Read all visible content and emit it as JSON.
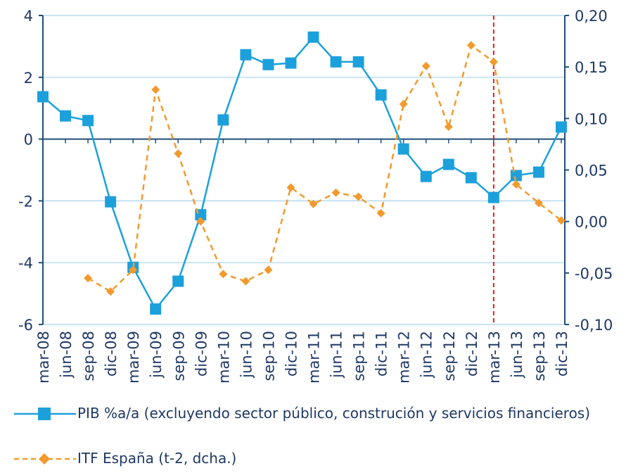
{
  "chart_data": {
    "type": "line",
    "categories": [
      "mar-08",
      "jun-08",
      "sep-08",
      "dic-08",
      "mar-09",
      "jun-09",
      "sep-09",
      "dic-09",
      "mar-10",
      "jun-10",
      "sep-10",
      "dic-10",
      "mar-11",
      "jun-11",
      "sep-11",
      "dic-11",
      "mar-12",
      "jun-12",
      "sep-12",
      "dic-12",
      "mar-13",
      "jun-13",
      "sep-13",
      "dic-13"
    ],
    "series": [
      {
        "name": "PIB %a/a (excluyendo sector público, construción y servicios financieros)",
        "color": "#1ca0dc",
        "marker": "square",
        "values": [
          1.37,
          0.75,
          0.6,
          -2.03,
          -4.15,
          -5.5,
          -4.6,
          -2.45,
          0.62,
          2.73,
          2.41,
          2.46,
          3.3,
          2.5,
          2.5,
          1.43,
          -0.32,
          -1.21,
          -0.82,
          -1.25,
          -1.89,
          -1.18,
          -1.07,
          0.39
        ]
      },
      {
        "name": "ITF España (t-2, dcha.)",
        "color": "#f29a2e",
        "marker": "diamond",
        "dashed": true,
        "axis": "y2",
        "values": [
          null,
          null,
          -0.055,
          -0.068,
          -0.047,
          0.128,
          0.066,
          0.0,
          -0.051,
          -0.058,
          -0.047,
          0.033,
          0.017,
          0.028,
          0.024,
          0.008,
          0.114,
          0.151,
          0.092,
          0.171,
          0.155,
          0.036,
          0.018,
          0.001
        ]
      }
    ],
    "ylim": [
      -6,
      4
    ],
    "yticks": [
      -6,
      -4,
      -2,
      0,
      2,
      4
    ],
    "y2lim": [
      -0.1,
      0.2
    ],
    "y2ticks": [
      {
        "value": -0.1,
        "label": "-0,10"
      },
      {
        "value": -0.05,
        "label": "-0,05"
      },
      {
        "value": 0,
        "label": "0,00"
      },
      {
        "value": 0.05,
        "label": "0,05"
      },
      {
        "value": 0.1,
        "label": "0,10"
      },
      {
        "value": 0.15,
        "label": "0,15"
      },
      {
        "value": 0.2,
        "label": "0,20"
      }
    ],
    "grid": true,
    "vline": {
      "category": "mar-13",
      "color": "#e02020"
    }
  }
}
